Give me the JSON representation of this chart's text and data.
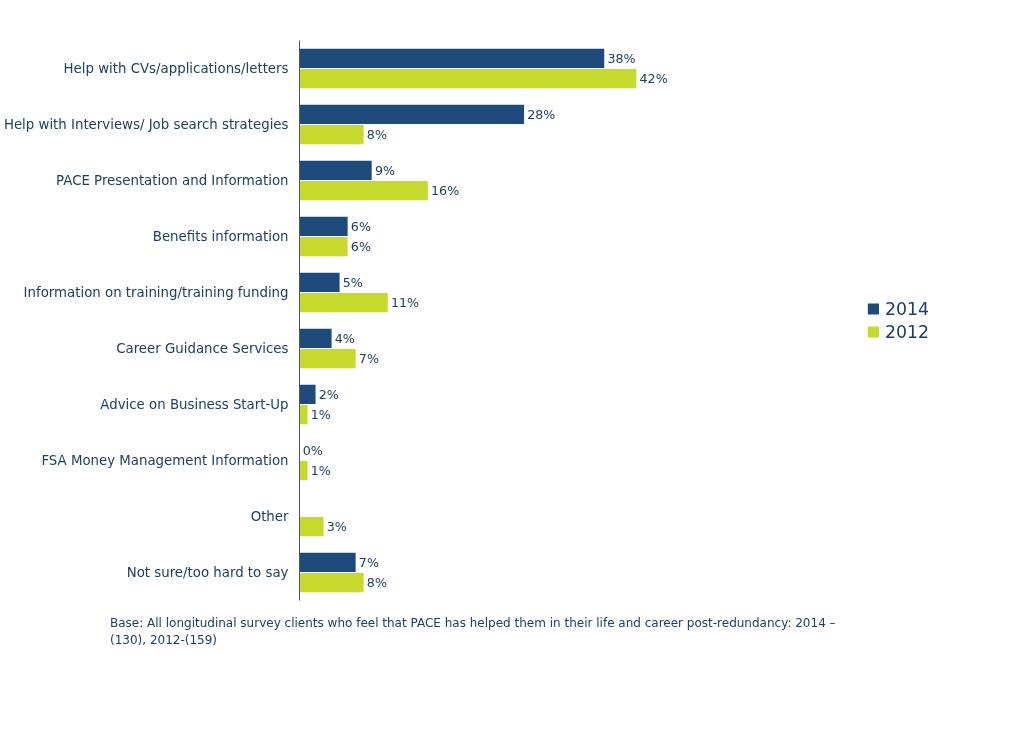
{
  "chart_data": {
    "type": "bar",
    "orientation": "horizontal",
    "categories": [
      "Help with CVs/applications/letters",
      "Help with Interviews/ Job search strategies",
      "PACE Presentation and Information",
      "Benefits information",
      "Information on training/training funding",
      "Career Guidance Services",
      "Advice on Business Start-Up",
      "FSA Money Management Information",
      "Other",
      "Not sure/too hard to say"
    ],
    "series": [
      {
        "name": "2014",
        "color": "#1d4a7a",
        "values": [
          38,
          28,
          9,
          6,
          5,
          4,
          2,
          0,
          null,
          7
        ],
        "value_labels": [
          "38%",
          "28%",
          "9%",
          "6%",
          "5%",
          "4%",
          "2%",
          "0%",
          null,
          "7%"
        ]
      },
      {
        "name": "2012",
        "color": "#c6d92f",
        "values": [
          42,
          8,
          16,
          6,
          11,
          7,
          1,
          1,
          3,
          8
        ],
        "value_labels": [
          "42%",
          "8%",
          "16%",
          "6%",
          "11%",
          "7%",
          "1%",
          "1%",
          "3%",
          "8%"
        ]
      }
    ],
    "tick_labels": "y",
    "grid": false,
    "legend": "right",
    "annotations": [
      "Base: All longitudinal survey clients who feel that PACE has helped them in their life and career post-redundancy: 2014 –(130), 2012-(159)"
    ]
  }
}
